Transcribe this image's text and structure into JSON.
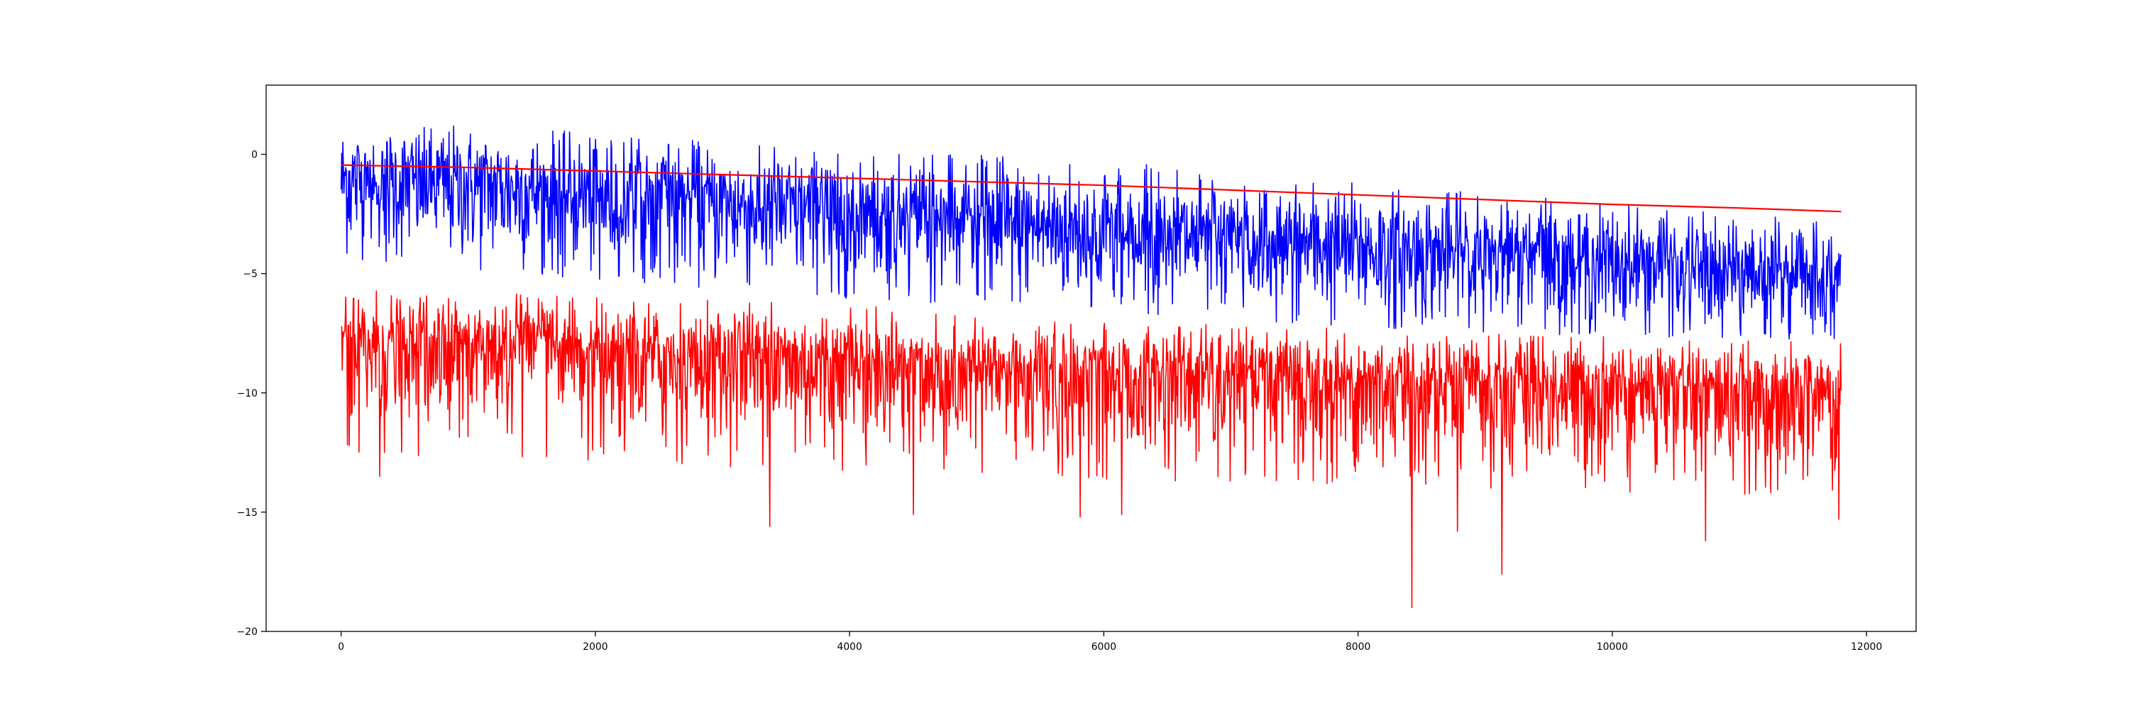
{
  "chart_data": {
    "type": "line",
    "title": "",
    "xlabel": "",
    "ylabel": "",
    "xlim": [
      -590,
      12390
    ],
    "ylim": [
      -20,
      2.9
    ],
    "grid": false,
    "legend": "none",
    "x_ticks": [
      0,
      2000,
      4000,
      6000,
      8000,
      10000,
      12000
    ],
    "x_tick_labels": [
      "0",
      "2000",
      "4000",
      "6000",
      "8000",
      "10000",
      "12000"
    ],
    "y_ticks": [
      0,
      -5,
      -10,
      -15,
      -20
    ],
    "y_tick_labels": [
      "0",
      "−5",
      "−10",
      "−15",
      "−20"
    ],
    "x_range": [
      0,
      11800
    ],
    "series": [
      {
        "color": "#0000ff",
        "style": "noisy",
        "x": [
          0,
          1000,
          2000,
          3000,
          4000,
          5000,
          6000,
          7000,
          8000,
          9000,
          10000,
          11000,
          11800
        ],
        "center": [
          -1.0,
          -1.2,
          -1.6,
          -2.0,
          -2.4,
          -2.8,
          -3.2,
          -3.5,
          -3.9,
          -4.2,
          -4.5,
          -4.8,
          -5.0
        ],
        "upper": [
          1.5,
          1.3,
          0.9,
          0.5,
          0.2,
          0.0,
          -0.3,
          -0.7,
          -1.2,
          -1.6,
          -2.0,
          -2.5,
          -2.8
        ],
        "lower": [
          -4.5,
          -4.8,
          -5.3,
          -5.7,
          -6.1,
          -6.4,
          -6.7,
          -7.0,
          -7.3,
          -7.5,
          -7.7,
          -7.8,
          -7.8
        ]
      },
      {
        "color": "#ff0000",
        "style": "noisy",
        "x": [
          0,
          1000,
          2000,
          3000,
          4000,
          5000,
          6000,
          7000,
          8000,
          9000,
          10000,
          11000,
          11800
        ],
        "center": [
          -7.8,
          -8.0,
          -8.3,
          -8.5,
          -8.7,
          -8.9,
          -9.1,
          -9.3,
          -9.5,
          -9.6,
          -9.7,
          -9.8,
          -9.9
        ],
        "upper": [
          -5.7,
          -5.7,
          -6.0,
          -6.1,
          -6.3,
          -6.6,
          -6.9,
          -7.1,
          -7.3,
          -7.5,
          -7.6,
          -7.8,
          -7.9
        ],
        "lower": [
          -12.5,
          -12.8,
          -13.0,
          -13.2,
          -13.4,
          -13.5,
          -13.7,
          -13.8,
          -14.0,
          -14.1,
          -14.2,
          -14.3,
          -14.3
        ],
        "spikes": [
          {
            "x": 300,
            "y": -13.5
          },
          {
            "x": 3370,
            "y": -15.6
          },
          {
            "x": 4500,
            "y": -15.1
          },
          {
            "x": 5810,
            "y": -15.2
          },
          {
            "x": 6140,
            "y": -15.1
          },
          {
            "x": 8420,
            "y": -19.0
          },
          {
            "x": 8780,
            "y": -15.8
          },
          {
            "x": 9130,
            "y": -17.6
          },
          {
            "x": 10730,
            "y": -16.2
          },
          {
            "x": 11780,
            "y": -15.3
          }
        ]
      },
      {
        "color": "#ff0000",
        "style": "smooth",
        "x": [
          0,
          1000,
          2000,
          3000,
          4000,
          5000,
          6000,
          7000,
          8000,
          9000,
          10000,
          11000,
          11800
        ],
        "y": [
          -0.45,
          -0.55,
          -0.7,
          -0.85,
          -1.0,
          -1.15,
          -1.3,
          -1.5,
          -1.7,
          -1.9,
          -2.1,
          -2.25,
          -2.4
        ]
      }
    ]
  }
}
